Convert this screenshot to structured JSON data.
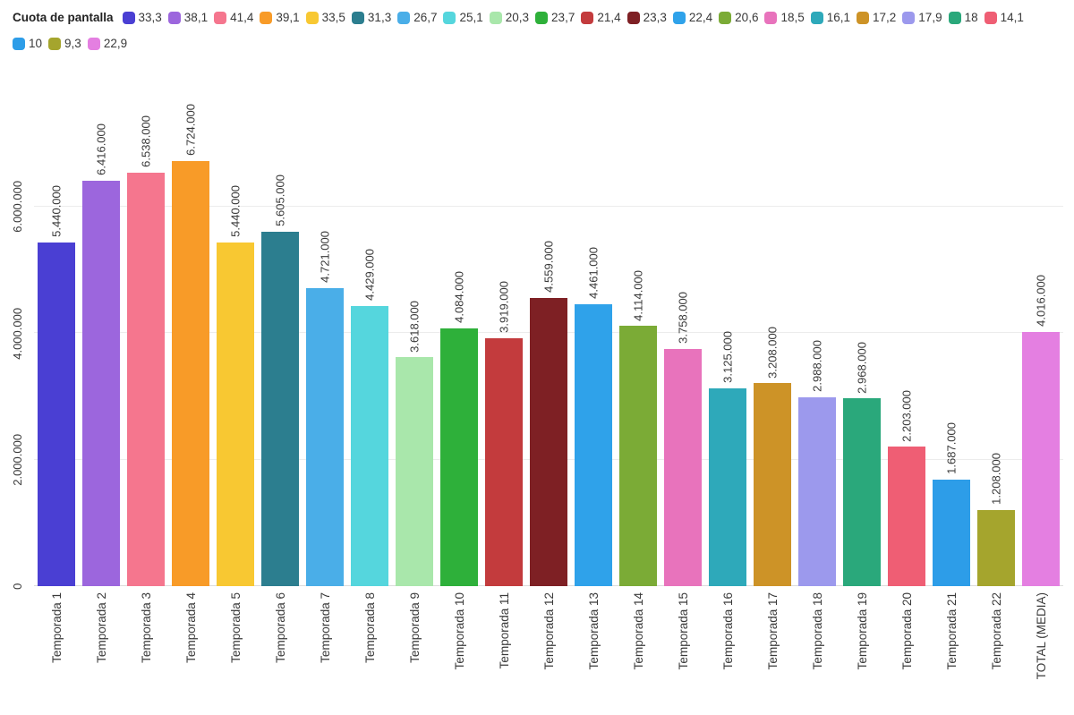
{
  "chart_data": {
    "type": "bar",
    "legend_position": "top-left",
    "grid": "horizontal",
    "legend": {
      "title": "Cuota de pantalla",
      "labels": [
        "33,3",
        "38,1",
        "41,4",
        "39,1",
        "33,5",
        "31,3",
        "26,7",
        "25,1",
        "20,3",
        "23,7",
        "21,4",
        "23,3",
        "22,4",
        "20,6",
        "18,5",
        "16,1",
        "17,2",
        "17,9",
        "18",
        "14,1",
        "10",
        "9,3",
        "22,9"
      ],
      "wrap_after": 20
    },
    "categories": [
      "Temporada 1",
      "Temporada 2",
      "Temporada 3",
      "Temporada 4",
      "Temporada 5",
      "Temporada 6",
      "Temporada 7",
      "Temporada 8",
      "Temporada 9",
      "Temporada 10",
      "Temporada 11",
      "Temporada 12",
      "Temporada 13",
      "Temporada 14",
      "Temporada 15",
      "Temporada 16",
      "Temporada 17",
      "Temporada 18",
      "Temporada 19",
      "Temporada 20",
      "Temporada 21",
      "Temporada 22",
      "TOTAL (MEDIA)"
    ],
    "values": [
      5440000,
      6416000,
      6538000,
      6724000,
      5440000,
      5605000,
      4721000,
      4429000,
      3618000,
      4084000,
      3919000,
      4559000,
      4461000,
      4114000,
      3758000,
      3125000,
      3208000,
      2988000,
      2968000,
      2203000,
      1687000,
      1208000,
      4016000
    ],
    "value_labels": [
      "5.440.000",
      "6.416.000",
      "6.538.000",
      "6.724.000",
      "5.440.000",
      "5.605.000",
      "4.721.000",
      "4.429.000",
      "3.618.000",
      "4.084.000",
      "3.919.000",
      "4.559.000",
      "4.461.000",
      "4.114.000",
      "3.758.000",
      "3.125.000",
      "3.208.000",
      "2.988.000",
      "2.968.000",
      "2.203.000",
      "1.687.000",
      "1.208.000",
      "4.016.000"
    ],
    "colors": [
      "#4a3fd3",
      "#9c66dd",
      "#f5768e",
      "#f89b28",
      "#f8c832",
      "#2c7e8f",
      "#4aaee8",
      "#55d6dd",
      "#a9e7ab",
      "#2eb03a",
      "#c33b3d",
      "#7e2024",
      "#2fa2ea",
      "#7bab36",
      "#e873bc",
      "#2ea9ba",
      "#cd9327",
      "#9c99ed",
      "#2aa87b",
      "#ef5e74",
      "#2d9de8",
      "#a5a52d",
      "#e47fe1"
    ],
    "yticks": [
      {
        "value": 0,
        "label": "0"
      },
      {
        "value": 2000000,
        "label": "2.000.000"
      },
      {
        "value": 4000000,
        "label": "4.000.000"
      },
      {
        "value": 6000000,
        "label": "6.000.000"
      }
    ],
    "ylim": [
      0,
      6724000
    ]
  }
}
